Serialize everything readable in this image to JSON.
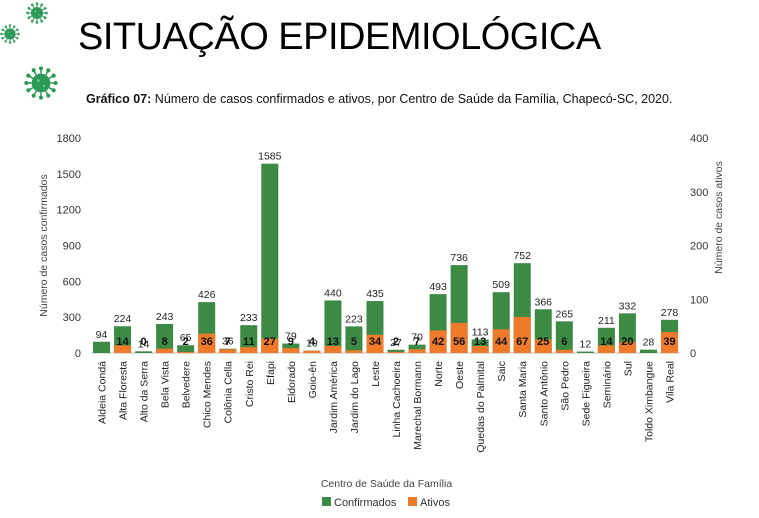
{
  "header": {
    "title": "SITUAÇÃO EPIDEMIOLÓGICA"
  },
  "caption": {
    "bold": "Gráfico 07:",
    "text": " Número de casos confirmados e ativos, por Centro de Saúde da Família, Chapecó-SC, 2020."
  },
  "icons": [
    "virus-icon",
    "virus-icon",
    "virus-icon"
  ],
  "colors": {
    "confirmados": "#3d8a45",
    "ativos": "#ee7a2a",
    "virus": "#2a9a55"
  },
  "chart_data": {
    "type": "bar",
    "title": "Número de casos confirmados e ativos, por Centro de Saúde da Família, Chapecó-SC, 2020.",
    "xlabel": "Centro de Saúde da Família",
    "ylabel": "Número de casos confirmados",
    "y2label": "Número de casos ativos",
    "ylim": [
      0,
      1800
    ],
    "y2lim": [
      0,
      400
    ],
    "yticks": [
      "0",
      "300",
      "600",
      "900",
      "1200",
      "1500",
      "1800"
    ],
    "y2ticks": [
      "0",
      "100",
      "200",
      "300",
      "400"
    ],
    "legend_position": "bottom",
    "categories": [
      "Aldeia Condá",
      "Alta Floresta",
      "Alto da Serra",
      "Bela Vista",
      "Belvedere",
      "Chico Mendes",
      "Colônia Cella",
      "Cristo Rei",
      "Efapi",
      "Eldorado",
      "Goio-ên",
      "Jardim América",
      "Jardim do Lago",
      "Leste",
      "Linha Cachoeira",
      "Marechal Bormann",
      "Norte",
      "Oeste",
      "Quedas do Palmital",
      "Saic",
      "Santa Maria",
      "Santo Antônio",
      "São Pedro",
      "Sede Figueira",
      "Seminário",
      "Sul",
      "Toldo Ximbangue",
      "Vila Real"
    ],
    "series": [
      {
        "name": "Confirmados",
        "axis": "left",
        "values": [
          94,
          224,
          14,
          243,
          65,
          426,
          36,
          233,
          1585,
          79,
          19,
          440,
          223,
          435,
          27,
          70,
          493,
          736,
          113,
          509,
          752,
          366,
          265,
          12,
          211,
          332,
          28,
          278
        ]
      },
      {
        "name": "Ativos",
        "axis": "right",
        "values": [
          0,
          14,
          0,
          8,
          2,
          36,
          7,
          11,
          27,
          9,
          4,
          13,
          5,
          34,
          2,
          7,
          42,
          56,
          13,
          44,
          67,
          25,
          6,
          0,
          14,
          20,
          0,
          39
        ]
      }
    ],
    "ativos_labels": [
      "",
      "14",
      "0",
      "8",
      "2",
      "36",
      "7",
      "11",
      "27",
      "9",
      "4",
      "13",
      "5",
      "34",
      "2",
      "7",
      "42",
      "56",
      "13",
      "44",
      "67",
      "25",
      "6",
      "",
      "14",
      "20",
      "",
      "39"
    ]
  }
}
